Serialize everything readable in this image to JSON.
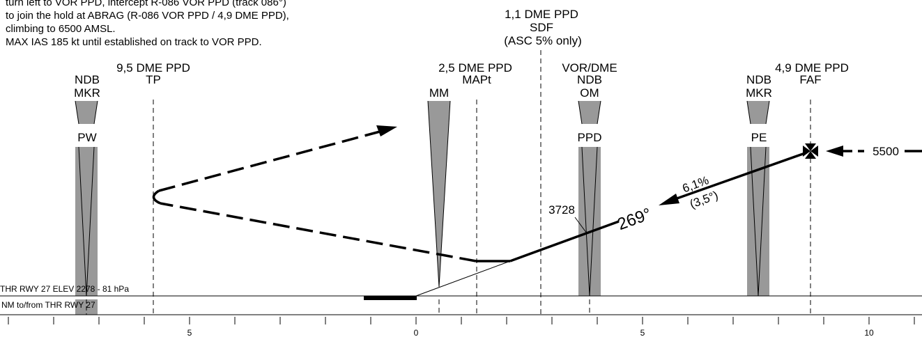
{
  "missed_approach_text": [
    "turn left to VOR PPD, intercept R-086 VOR PPD (track 086°)",
    "to join the hold at ABRAG (R-086 VOR PPD / 4,9 DME PPD),",
    "climbing to 6500 AMSL.",
    "MAX IAS 185 kt until established on track to VOR PPD."
  ],
  "fixes": {
    "sdf": [
      "1,1 DME PPD",
      "SDF",
      "(ASC 5% only)"
    ],
    "tp": [
      "9,5 DME PPD",
      "TP"
    ],
    "mapt": [
      "2,5 DME PPD",
      "MAPt"
    ],
    "faf": [
      "4,9 DME PPD",
      "FAF"
    ]
  },
  "beacons": {
    "pw": {
      "type": "NDB",
      "marker": "MKR",
      "ident": "PW"
    },
    "mm": {
      "marker": "MM"
    },
    "ppd": {
      "type1": "VOR/DME",
      "type2": "NDB",
      "marker": "OM",
      "ident": "PPD"
    },
    "pe": {
      "type": "NDB",
      "marker": "MKR",
      "ident": "PE"
    }
  },
  "profile": {
    "altitude_5500": "5500",
    "gradient": "6,1%",
    "angle": "(3,5°)",
    "track": "269°",
    "check_alt": "3728"
  },
  "footer": {
    "thr_line": "THR RWY 27 ELEV 2278 - 81 hPa",
    "nm_line": "NM to/from THR RWY 27"
  },
  "axis_labels": [
    "5",
    "0",
    "5",
    "10"
  ],
  "colors": {
    "beacon_fill": "#999999",
    "line": "#000000"
  }
}
